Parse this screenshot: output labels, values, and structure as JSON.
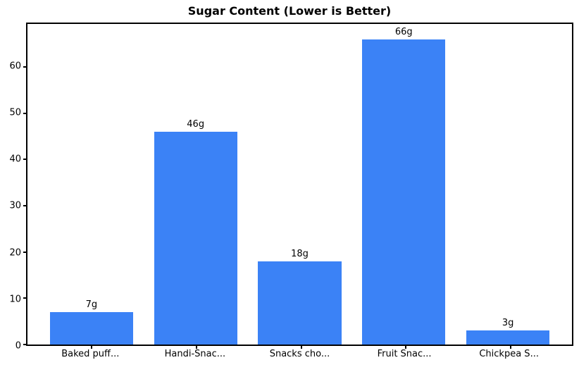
{
  "chart_data": {
    "type": "bar",
    "title": "Sugar Content (Lower is Better)",
    "categories": [
      "Baked puff...",
      "Handi-Snac...",
      "Snacks cho...",
      "Fruit Snac...",
      "Chickpea S..."
    ],
    "values": [
      7,
      46,
      18,
      66,
      3
    ],
    "bar_labels": [
      "7g",
      "46g",
      "18g",
      "66g",
      "3g"
    ],
    "xlabel": "",
    "ylabel": "",
    "yticks": [
      0,
      10,
      20,
      30,
      40,
      50,
      60
    ],
    "ylim": [
      0,
      69.3
    ],
    "grid": false,
    "legend_position": "none",
    "bar_color": "#3b82f6",
    "axis_color": "#000000",
    "background_color": "#ffffff"
  }
}
